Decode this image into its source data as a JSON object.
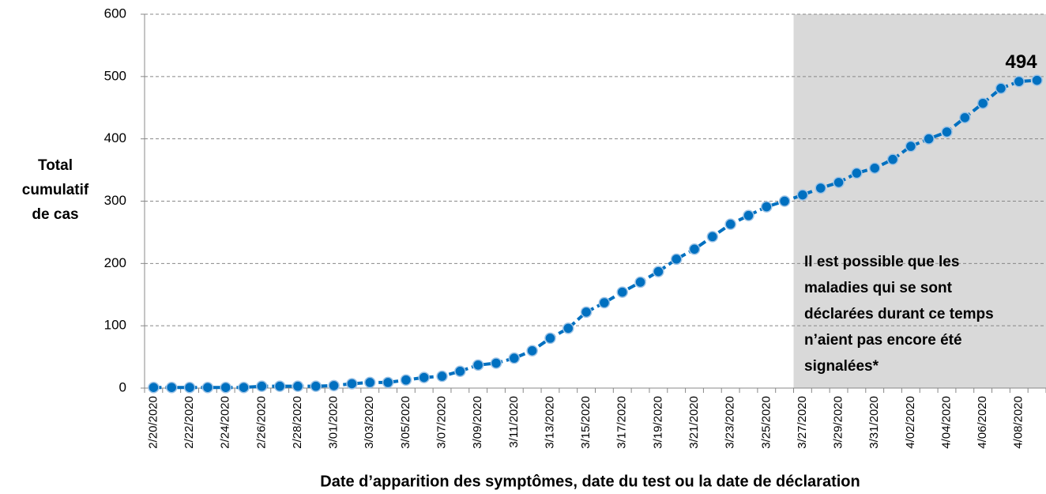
{
  "chart_data": {
    "type": "line",
    "ylabel": [
      "Total",
      "cumulatif",
      "de cas"
    ],
    "xlabel": "Date d’apparition des symptômes, date du test ou la date de déclaration",
    "annotation": [
      "Il est possible que les",
      "maladies qui se sont",
      "déclarées durant ce temps",
      "n’aient pas encore été",
      "signalées*"
    ],
    "shaded_from": "3/27/2020",
    "categories": [
      "2/20/2020",
      null,
      "2/22/2020",
      null,
      "2/24/2020",
      null,
      "2/26/2020",
      null,
      "2/28/2020",
      null,
      "3/01/2020",
      null,
      "3/03/2020",
      null,
      "3/05/2020",
      null,
      "3/07/2020",
      null,
      "3/09/2020",
      null,
      "3/11/2020",
      null,
      "3/13/2020",
      null,
      "3/15/2020",
      null,
      "3/17/2020",
      null,
      "3/19/2020",
      null,
      "3/21/2020",
      null,
      "3/23/2020",
      null,
      "3/25/2020",
      null,
      "3/27/2020",
      null,
      "3/29/2020",
      null,
      "3/31/2020",
      null,
      "4/02/2020",
      null,
      "4/04/2020",
      null,
      "4/06/2020",
      null,
      "4/08/2020",
      null
    ],
    "series": [
      {
        "name": "Total cumulatif de cas",
        "color": "#0070c0",
        "values": [
          1,
          1,
          1,
          1,
          1,
          1,
          3,
          3,
          3,
          3,
          4,
          7,
          9,
          9,
          13,
          17,
          19,
          27,
          37,
          40,
          48,
          60,
          80,
          96,
          122,
          137,
          154,
          170,
          187,
          207,
          223,
          243,
          263,
          277,
          291,
          300,
          310,
          321,
          330,
          345,
          353,
          367,
          388,
          400,
          411,
          434,
          457,
          481,
          492,
          494
        ],
        "value_labels": [
          null,
          null,
          null,
          null,
          null,
          null,
          null,
          null,
          null,
          null,
          null,
          null,
          null,
          null,
          null,
          null,
          null,
          null,
          null,
          null,
          null,
          null,
          null,
          null,
          null,
          null,
          null,
          null,
          null,
          null,
          null,
          null,
          null,
          null,
          null,
          null,
          null,
          null,
          null,
          null,
          null,
          null,
          null,
          null,
          null,
          null,
          null,
          null,
          null,
          "494"
        ]
      }
    ],
    "ylim": [
      0,
      600
    ],
    "yticks": [
      0,
      100,
      200,
      300,
      400,
      500,
      600
    ],
    "grid": true
  }
}
